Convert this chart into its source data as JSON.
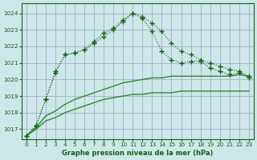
{
  "x": [
    0,
    1,
    2,
    3,
    4,
    5,
    6,
    7,
    8,
    9,
    10,
    11,
    12,
    13,
    14,
    15,
    16,
    17,
    18,
    19,
    20,
    21,
    22,
    23
  ],
  "line_marker_high": [
    1016.6,
    1017.2,
    1018.8,
    1020.4,
    1021.5,
    1021.6,
    1021.8,
    1022.3,
    1022.8,
    1023.1,
    1023.6,
    1024.0,
    1023.8,
    1023.4,
    1022.9,
    1022.2,
    1021.7,
    1021.5,
    1021.2,
    1021.0,
    1020.8,
    1020.6,
    1020.5,
    1020.2
  ],
  "line_marker_low": [
    1016.6,
    1017.2,
    1018.8,
    1020.5,
    1021.5,
    1021.6,
    1021.8,
    1022.2,
    1022.6,
    1023.0,
    1023.5,
    1024.0,
    1023.7,
    1022.9,
    1021.7,
    1021.2,
    1021.0,
    1021.1,
    1021.1,
    1020.7,
    1020.5,
    1020.3,
    1020.4,
    1020.1
  ],
  "line_smooth_top": [
    1016.6,
    1017.1,
    1017.8,
    1018.1,
    1018.5,
    1018.8,
    1019.0,
    1019.2,
    1019.4,
    1019.6,
    1019.8,
    1019.9,
    1020.0,
    1020.1,
    1020.1,
    1020.2,
    1020.2,
    1020.2,
    1020.2,
    1020.2,
    1020.2,
    1020.2,
    1020.3,
    1020.2
  ],
  "line_smooth_bot": [
    1016.6,
    1017.0,
    1017.5,
    1017.7,
    1018.0,
    1018.2,
    1018.4,
    1018.6,
    1018.8,
    1018.9,
    1019.0,
    1019.1,
    1019.1,
    1019.2,
    1019.2,
    1019.2,
    1019.3,
    1019.3,
    1019.3,
    1019.3,
    1019.3,
    1019.3,
    1019.3,
    1019.3
  ],
  "bg_color": "#cce8e8",
  "grid_color": "#aaaacc",
  "line_dark": "#1a5c1a",
  "line_mid": "#2d8b2d",
  "xlabel": "Graphe pression niveau de la mer (hPa)",
  "ylim": [
    1016.4,
    1024.6
  ],
  "yticks": [
    1017,
    1018,
    1019,
    1020,
    1021,
    1022,
    1023,
    1024
  ],
  "xlim": [
    -0.5,
    23.5
  ],
  "xticks": [
    0,
    1,
    2,
    3,
    4,
    5,
    6,
    7,
    8,
    9,
    10,
    11,
    12,
    13,
    14,
    15,
    16,
    17,
    18,
    19,
    20,
    21,
    22,
    23
  ],
  "figsize": [
    3.2,
    2.0
  ],
  "dpi": 100
}
